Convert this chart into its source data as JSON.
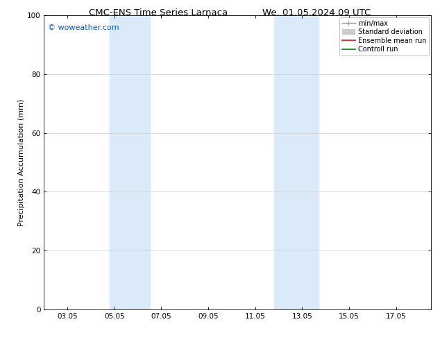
{
  "title_left": "CMC-ENS Time Series Larnaca",
  "title_right": "We. 01.05.2024 09 UTC",
  "ylabel": "Precipitation Accumulation (mm)",
  "ylim": [
    0,
    100
  ],
  "yticks": [
    0,
    20,
    40,
    60,
    80,
    100
  ],
  "xtick_labels": [
    "03.05",
    "05.05",
    "07.05",
    "09.05",
    "11.05",
    "13.05",
    "15.05",
    "17.05"
  ],
  "xtick_positions": [
    2,
    4,
    6,
    8,
    10,
    12,
    14,
    16
  ],
  "xlim": [
    1,
    17.5
  ],
  "shaded_bands": [
    {
      "x_start": 3.8,
      "x_end": 5.5,
      "color": "#daeaf8"
    },
    {
      "x_start": 10.8,
      "x_end": 12.7,
      "color": "#daeaf8"
    }
  ],
  "copyright_text": "© woweather.com",
  "copyright_color": "#0055cc",
  "background_color": "#ffffff",
  "grid_color": "#cccccc",
  "title_fontsize": 9.5,
  "axis_label_fontsize": 8,
  "tick_fontsize": 7.5,
  "legend_fontsize": 7,
  "copyright_fontsize": 8
}
